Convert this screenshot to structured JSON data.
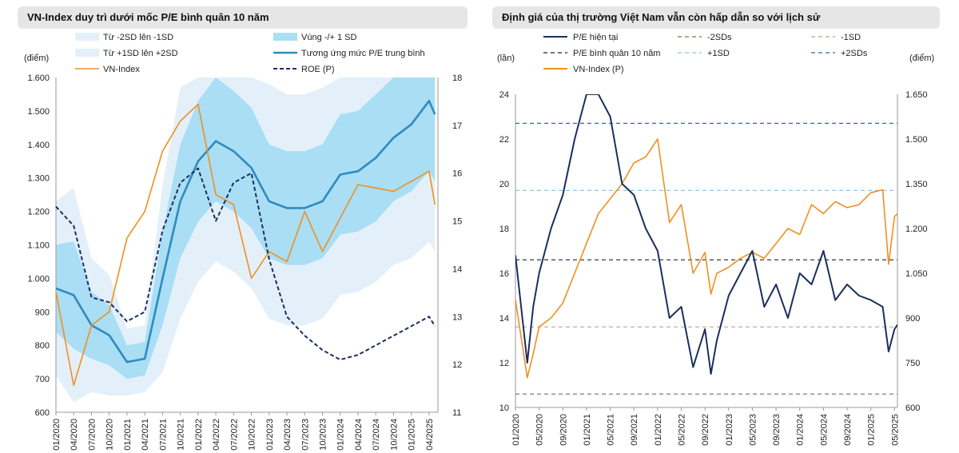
{
  "chart_data": [
    {
      "type": "line",
      "title": "VN-Index duy trì dưới mốc P/E bình quân 10 năm",
      "ylabel": "(điểm)",
      "ylim": [
        600,
        1600
      ],
      "y_ticks": [
        "600",
        "700",
        "800",
        "900",
        "1.000",
        "1.100",
        "1.200",
        "1.300",
        "1.400",
        "1.500",
        "1.600"
      ],
      "y2lim": [
        11,
        18
      ],
      "y2_ticks": [
        "11",
        "12",
        "13",
        "14",
        "15",
        "16",
        "17",
        "18"
      ],
      "x_ticks": [
        "01/2020",
        "04/2020",
        "07/2020",
        "10/2020",
        "01/2021",
        "04/2021",
        "07/2021",
        "10/2021",
        "01/2022",
        "04/2022",
        "07/2022",
        "10/2022",
        "01/2023",
        "04/2023",
        "07/2023",
        "10/2023",
        "01/2024",
        "04/2024",
        "07/2024",
        "10/2024",
        "01/2025",
        "04/2025"
      ],
      "legend": [
        "Từ -2SD lên -1SD",
        "Vùng -/+ 1 SD",
        "Từ +1SD lên +2SD",
        "Tương ứng mức P/E trung bình",
        "VN-Index",
        "ROE (P)"
      ],
      "x_month": [
        0,
        3,
        6,
        9,
        12,
        15,
        18,
        21,
        24,
        27,
        30,
        33,
        36,
        39,
        42,
        45,
        48,
        51,
        54,
        57,
        60,
        63,
        64
      ],
      "series": [
        {
          "name": "VN-Index",
          "values": [
            960,
            680,
            860,
            900,
            1120,
            1200,
            1380,
            1470,
            1520,
            1250,
            1220,
            1000,
            1080,
            1050,
            1200,
            1080,
            1180,
            1280,
            1270,
            1260,
            1290,
            1320,
            1220
          ]
        },
        {
          "name": "Tương ứng mức P/E trung bình",
          "values": [
            970,
            950,
            860,
            830,
            750,
            760,
            1000,
            1230,
            1350,
            1410,
            1380,
            1330,
            1230,
            1210,
            1210,
            1230,
            1310,
            1320,
            1360,
            1420,
            1460,
            1530,
            1490
          ]
        },
        {
          "name": "Vùng -1SD",
          "values": [
            840,
            790,
            760,
            740,
            700,
            710,
            860,
            1060,
            1170,
            1230,
            1200,
            1150,
            1060,
            1040,
            1040,
            1060,
            1130,
            1140,
            1170,
            1230,
            1260,
            1320,
            1290
          ]
        },
        {
          "name": "Vùng +1SD",
          "values": [
            1100,
            1110,
            960,
            920,
            800,
            810,
            1140,
            1400,
            1530,
            1600,
            1560,
            1510,
            1400,
            1380,
            1380,
            1400,
            1490,
            1500,
            1550,
            1600,
            1600,
            1600,
            1600
          ]
        },
        {
          "name": "Từ -2SD lên -1SD",
          "values": [
            710,
            630,
            660,
            650,
            650,
            660,
            720,
            880,
            990,
            1050,
            1020,
            970,
            880,
            860,
            860,
            880,
            950,
            960,
            990,
            1040,
            1060,
            1110,
            1080
          ]
        },
        {
          "name": "Từ +1SD lên +2SD",
          "values": [
            1230,
            1270,
            1060,
            1010,
            850,
            860,
            1280,
            1570,
            1600,
            1600,
            1600,
            1600,
            1580,
            1550,
            1550,
            1570,
            1600,
            1600,
            1600,
            1600,
            1600,
            1600,
            1600
          ]
        },
        {
          "name": "ROE (P)",
          "axis": "right",
          "values": [
            15.3,
            14.9,
            13.4,
            13.3,
            12.9,
            13.1,
            14.8,
            15.8,
            16.1,
            15.0,
            15.8,
            16.0,
            14.2,
            13.0,
            12.6,
            12.3,
            12.1,
            12.2,
            12.4,
            12.6,
            12.8,
            13.0,
            12.8
          ]
        }
      ]
    },
    {
      "type": "line",
      "title": "Định giá của thị trường Việt Nam vẫn còn hấp dẫn so với lịch sử",
      "ylabel": "(lần)",
      "y2label": "(điểm)",
      "ylim": [
        10,
        24
      ],
      "y_ticks": [
        "10",
        "12",
        "14",
        "16",
        "18",
        "20",
        "22",
        "24"
      ],
      "y2lim": [
        600,
        1650
      ],
      "y2_ticks": [
        "600",
        "750",
        "900",
        "1.050",
        "1.200",
        "1.350",
        "1.500",
        "1.650"
      ],
      "x_ticks": [
        "01/2020",
        "05/2020",
        "09/2020",
        "01/2021",
        "05/2021",
        "09/2021",
        "01/2022",
        "05/2022",
        "09/2022",
        "01/2023",
        "05/2023",
        "09/2023",
        "01/2024",
        "05/2024",
        "09/2024",
        "01/2025",
        "05/2025"
      ],
      "legend": [
        "P/E hiện tại",
        "-2SDs",
        "-1SD",
        "P/E bình quân 10 năm",
        "+1SD",
        "+2SDs",
        "VN-Index (P)"
      ],
      "reference_lines": {
        "-2SDs": 10.6,
        "-1SD": 13.6,
        "P/E bình quân 10 năm": 16.6,
        "+1SD": 19.7,
        "+2SDs": 22.7
      },
      "x_month": [
        0,
        2,
        3,
        4,
        6,
        8,
        10,
        12,
        14,
        16,
        18,
        20,
        22,
        24,
        26,
        28,
        30,
        32,
        33,
        34,
        36,
        38,
        40,
        42,
        44,
        46,
        48,
        50,
        52,
        54,
        56,
        58,
        60,
        62,
        63,
        64,
        64.5
      ],
      "series": [
        {
          "name": "P/E hiện tại",
          "values": [
            16.8,
            12.0,
            14.5,
            16.0,
            18.0,
            19.5,
            22.0,
            24.0,
            24.0,
            23.0,
            20.0,
            19.5,
            18.0,
            17.0,
            14.0,
            14.5,
            11.8,
            13.5,
            11.5,
            13.0,
            15.0,
            16.0,
            17.0,
            14.5,
            15.5,
            14.0,
            16.0,
            15.5,
            17.0,
            14.8,
            15.5,
            15.0,
            14.8,
            14.5,
            12.5,
            13.5,
            13.7
          ]
        },
        {
          "name": "VN-Index (P)",
          "values": [
            960,
            700,
            780,
            870,
            900,
            950,
            1050,
            1150,
            1250,
            1300,
            1350,
            1420,
            1440,
            1500,
            1220,
            1280,
            1050,
            1120,
            980,
            1050,
            1070,
            1100,
            1120,
            1100,
            1150,
            1200,
            1180,
            1280,
            1250,
            1290,
            1270,
            1280,
            1320,
            1330,
            1080,
            1240,
            1250
          ]
        }
      ]
    }
  ]
}
